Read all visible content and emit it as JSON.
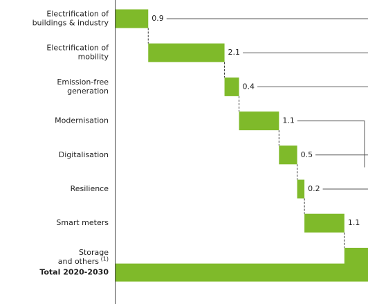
{
  "chart_data": {
    "type": "waterfall",
    "categories": [
      [
        "Electrification of",
        "buildings  & industry"
      ],
      [
        "Electrification of",
        "mobility"
      ],
      [
        "Emission-free",
        "generation"
      ],
      [
        "Modernisation"
      ],
      [
        "Digitalisation"
      ],
      [
        "Resilience"
      ],
      [
        "Smart meters"
      ],
      [
        "Storage",
        "and others"
      ]
    ],
    "footnote_mark": "(1)",
    "values": [
      0.9,
      2.1,
      0.4,
      1.1,
      0.5,
      0.2,
      1.1,
      0.7
    ],
    "total_label": "Total 2020-2030",
    "total": 7.0,
    "color": "#7fba2a",
    "xlim": [
      0,
      6.95
    ]
  }
}
